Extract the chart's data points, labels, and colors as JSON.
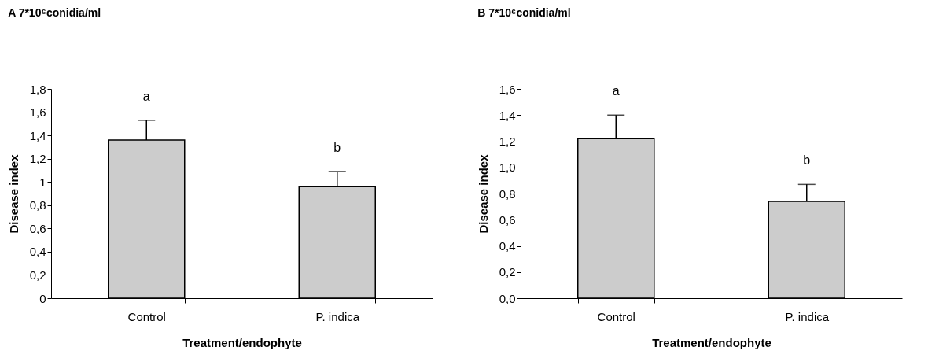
{
  "chart_data": [
    {
      "type": "bar",
      "title": "A  7*10⁶conidia/ml",
      "xlabel": "Treatment/endophyte",
      "ylabel": "Disease index",
      "categories": [
        "Control",
        "P. indica"
      ],
      "values": [
        1.36,
        0.96
      ],
      "errors": [
        0.17,
        0.13
      ],
      "color": "#cccccc",
      "ylim": [
        0,
        1.8
      ],
      "yticks": [
        0,
        {
          "value": 0.2,
          "label": "0,2"
        },
        {
          "value": 0.4,
          "label": "0,4"
        },
        {
          "value": 0.6,
          "label": "0,6"
        },
        {
          "value": 0.8,
          "label": "0,8"
        },
        1,
        {
          "value": 1.2,
          "label": "1,2"
        },
        {
          "value": 1.4,
          "label": "1,4"
        },
        {
          "value": 1.6,
          "label": "1,6"
        },
        {
          "value": 1.8,
          "label": "1,8"
        }
      ],
      "grid": false,
      "annotations": [
        "a",
        "b"
      ]
    },
    {
      "type": "bar",
      "title": "B  7*10⁶conidia/ml",
      "xlabel": "Treatment/endophyte",
      "ylabel": "Disease index",
      "categories": [
        "Control",
        "P. indica"
      ],
      "values": [
        1.22,
        0.74
      ],
      "errors": [
        0.18,
        0.13
      ],
      "color": "#cccccc",
      "ylim": [
        0,
        1.6
      ],
      "yticks": [
        {
          "value": 0,
          "label": "0,0"
        },
        {
          "value": 0.2,
          "label": "0,2"
        },
        {
          "value": 0.4,
          "label": "0,4"
        },
        {
          "value": 0.6,
          "label": "0,6"
        },
        {
          "value": 0.8,
          "label": "0,8"
        },
        {
          "value": 1.0,
          "label": "1,0"
        },
        {
          "value": 1.2,
          "label": "1,2"
        },
        {
          "value": 1.4,
          "label": "1,4"
        },
        {
          "value": 1.6,
          "label": "1,6"
        }
      ],
      "grid": false,
      "annotations": [
        "a",
        "b"
      ]
    }
  ]
}
